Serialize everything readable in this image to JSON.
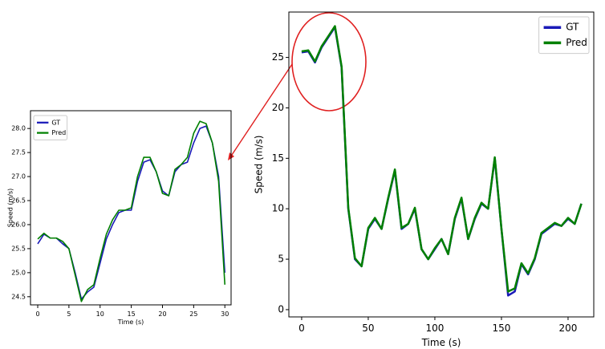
{
  "chart_data": [
    {
      "type": "line",
      "xlabel": "Time (s)",
      "ylabel": "Speed (m/s)",
      "legend": "upper left",
      "x": [
        0,
        1,
        2,
        3,
        4,
        5,
        6,
        7,
        8,
        9,
        10,
        11,
        12,
        13,
        14,
        15,
        16,
        17,
        18,
        19,
        20,
        21,
        22,
        23,
        24,
        25,
        26,
        27,
        28,
        29,
        30
      ],
      "series": [
        {
          "name": "GT",
          "color": "#1a1ab8",
          "values": [
            25.6,
            25.8,
            25.72,
            25.72,
            25.6,
            25.5,
            25.0,
            24.45,
            24.6,
            24.7,
            25.2,
            25.7,
            26.0,
            26.25,
            26.3,
            26.3,
            26.9,
            27.3,
            27.35,
            27.1,
            26.7,
            26.6,
            27.1,
            27.25,
            27.3,
            27.7,
            28.0,
            28.05,
            27.7,
            27.0,
            25.0
          ]
        },
        {
          "name": "Pred",
          "color": "#008000",
          "values": [
            25.7,
            25.82,
            25.72,
            25.72,
            25.65,
            25.5,
            24.95,
            24.4,
            24.65,
            24.75,
            25.3,
            25.8,
            26.1,
            26.3,
            26.3,
            26.35,
            27.0,
            27.4,
            27.4,
            27.1,
            26.65,
            26.6,
            27.15,
            27.25,
            27.4,
            27.9,
            28.15,
            28.1,
            27.7,
            26.9,
            24.75
          ]
        }
      ],
      "xlim": [
        -1.16,
        31.0
      ],
      "ylim": [
        24.33,
        28.37
      ],
      "xticks": [
        0,
        5,
        10,
        15,
        20,
        25,
        30
      ],
      "yticks": [
        24.5,
        {
          "value": 25,
          "label": "25.0"
        },
        25.5,
        {
          "value": 26,
          "label": "26.0"
        },
        26.5,
        {
          "value": 27,
          "label": "27.0"
        },
        27.5,
        {
          "value": 28,
          "label": "28.0"
        }
      ]
    },
    {
      "type": "line",
      "xlabel": "Time (s)",
      "ylabel": "Speed (m/s)",
      "legend": "upper right",
      "x": [
        0,
        5,
        10,
        15,
        20,
        25,
        30,
        35,
        40,
        45,
        50,
        55,
        60,
        65,
        70,
        75,
        80,
        85,
        90,
        95,
        100,
        105,
        110,
        115,
        120,
        125,
        130,
        135,
        140,
        145,
        150,
        155,
        160,
        165,
        170,
        175,
        180,
        185,
        190,
        195,
        200,
        205,
        210
      ],
      "series": [
        {
          "name": "GT",
          "color": "#1a1ab8",
          "values": [
            25.5,
            25.6,
            24.5,
            26,
            27,
            28,
            24,
            10,
            5,
            4.3,
            8,
            9,
            8,
            11,
            13.8,
            8,
            8.5,
            10,
            6,
            5,
            6,
            7,
            5.5,
            9,
            11,
            7,
            9,
            10.5,
            10,
            15,
            8,
            1.4,
            1.8,
            4.5,
            3.5,
            5,
            7.5,
            8,
            8.5,
            8.3,
            9,
            8.5,
            10.5
          ]
        },
        {
          "name": "Pred",
          "color": "#008000",
          "values": [
            25.6,
            25.7,
            24.6,
            26.1,
            27.1,
            28.1,
            24.1,
            10.1,
            5.1,
            4.3,
            8.1,
            9.1,
            8,
            11.1,
            13.9,
            8.1,
            8.5,
            10.1,
            6,
            5,
            6.1,
            7,
            5.5,
            9.1,
            11.1,
            7,
            9.1,
            10.6,
            10,
            15.1,
            8,
            1.8,
            2.1,
            4.6,
            3.6,
            5.1,
            7.6,
            8.1,
            8.6,
            8.3,
            9.1,
            8.5,
            10.5
          ]
        }
      ],
      "xlim": [
        -9.6,
        219.3
      ],
      "ylim": [
        -0.72,
        29.5
      ],
      "xticks": [
        0,
        50,
        100,
        150,
        200
      ],
      "yticks": [
        0,
        5,
        10,
        15,
        20,
        25
      ]
    }
  ]
}
